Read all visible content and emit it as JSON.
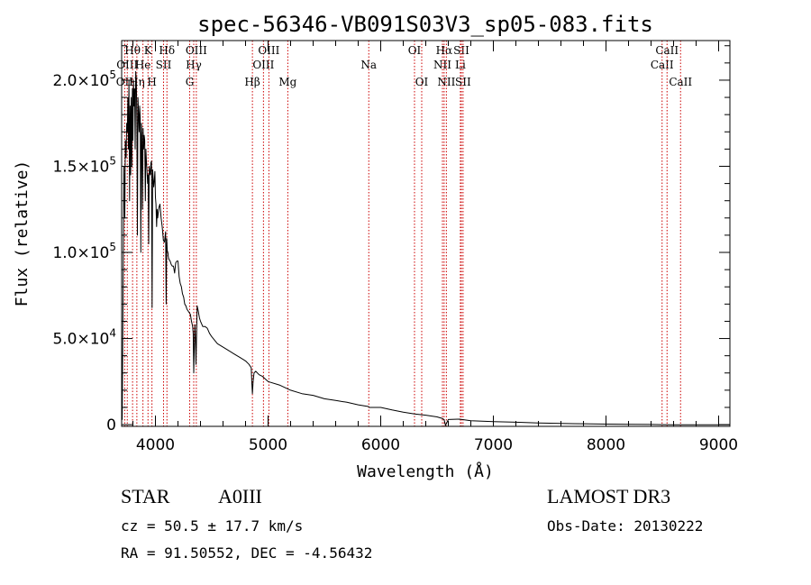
{
  "chart_data": {
    "type": "line",
    "title": "spec-56346-VB091S03V3_sp05-083.fits",
    "xlabel": "Wavelength (Å)",
    "ylabel": "Flux (relative)",
    "xlim": [
      3700,
      9100
    ],
    "ylim": [
      -1000,
      223000
    ],
    "xticks": [
      4000,
      5000,
      6000,
      7000,
      8000,
      9000
    ],
    "xtick_labels": [
      "4000",
      "5000",
      "6000",
      "7000",
      "8000",
      "9000"
    ],
    "yticks": [
      0,
      50000,
      100000,
      150000,
      200000
    ],
    "ytick_labels": [
      {
        "mant": "0",
        "exp": ""
      },
      {
        "mant": "5.0×10",
        "exp": "4"
      },
      {
        "mant": "1.0×10",
        "exp": "5"
      },
      {
        "mant": "1.5×10",
        "exp": "5"
      },
      {
        "mant": "2.0×10",
        "exp": "5"
      }
    ],
    "series": [
      {
        "name": "spectrum",
        "x": [
          3700,
          3705,
          3712,
          3720,
          3728,
          3733,
          3740,
          3745,
          3750,
          3755,
          3760,
          3765,
          3770,
          3775,
          3780,
          3785,
          3790,
          3795,
          3800,
          3805,
          3810,
          3815,
          3820,
          3825,
          3830,
          3835,
          3840,
          3845,
          3850,
          3855,
          3860,
          3865,
          3870,
          3875,
          3880,
          3885,
          3890,
          3895,
          3900,
          3905,
          3910,
          3915,
          3920,
          3925,
          3930,
          3935,
          3940,
          3945,
          3950,
          3955,
          3960,
          3965,
          3970,
          3975,
          3980,
          3985,
          3990,
          3995,
          4000,
          4005,
          4010,
          4015,
          4020,
          4030,
          4040,
          4050,
          4060,
          4070,
          4080,
          4090,
          4095,
          4100,
          4105,
          4110,
          4115,
          4120,
          4130,
          4140,
          4150,
          4160,
          4170,
          4180,
          4190,
          4200,
          4210,
          4220,
          4230,
          4240,
          4250,
          4260,
          4270,
          4280,
          4290,
          4300,
          4310,
          4320,
          4330,
          4335,
          4340,
          4345,
          4350,
          4355,
          4360,
          4370,
          4380,
          4390,
          4400,
          4420,
          4440,
          4460,
          4480,
          4500,
          4550,
          4600,
          4650,
          4700,
          4750,
          4800,
          4830,
          4850,
          4855,
          4861,
          4867,
          4875,
          4890,
          4920,
          4950,
          5000,
          5100,
          5200,
          5300,
          5400,
          5500,
          5600,
          5700,
          5800,
          5890,
          5900,
          6000,
          6100,
          6200,
          6300,
          6400,
          6500,
          6550,
          6563,
          6575,
          6600,
          6700,
          6800,
          6900,
          7000,
          7200,
          7400,
          7600,
          7800,
          8000,
          8200,
          8400,
          8500,
          8600,
          8800,
          9000,
          9100
        ],
        "values": [
          45000,
          3000,
          70000,
          150000,
          120000,
          165000,
          155000,
          175000,
          170000,
          190000,
          160000,
          200000,
          130000,
          185000,
          145000,
          190000,
          150000,
          195000,
          165000,
          200000,
          185000,
          195000,
          160000,
          205000,
          200000,
          175000,
          110000,
          190000,
          180000,
          170000,
          185000,
          178000,
          100000,
          175000,
          168000,
          125000,
          172000,
          160000,
          168000,
          165000,
          130000,
          160000,
          153000,
          148000,
          140000,
          145000,
          105000,
          150000,
          146000,
          145000,
          152000,
          153000,
          68000,
          148000,
          143000,
          138000,
          142000,
          147000,
          132000,
          128000,
          115000,
          125000,
          120000,
          126000,
          128000,
          120000,
          115000,
          107000,
          106000,
          112000,
          70000,
          108000,
          101000,
          100000,
          97000,
          96000,
          95000,
          93000,
          92000,
          92000,
          88000,
          94000,
          95000,
          95000,
          86000,
          82000,
          80000,
          76000,
          74000,
          70000,
          69000,
          67000,
          66000,
          65000,
          64000,
          60000,
          57000,
          53000,
          30000,
          45000,
          58000,
          50000,
          35000,
          69000,
          66000,
          62000,
          60000,
          57000,
          57000,
          56000,
          53000,
          51000,
          47000,
          45000,
          43000,
          41000,
          39000,
          37000,
          35000,
          33000,
          25000,
          18000,
          25000,
          30000,
          31000,
          29000,
          28000,
          25000,
          23000,
          20000,
          18000,
          17000,
          15000,
          14000,
          13000,
          11500,
          10500,
          10000,
          10000,
          8500,
          7200,
          6200,
          5500,
          4500,
          3500,
          2800,
          -500,
          3000,
          3200,
          2300,
          2000,
          1700,
          1400,
          1000,
          700,
          500,
          300,
          200,
          100,
          20,
          -50,
          -50,
          -50,
          -50
        ]
      }
    ],
    "line_markers": [
      {
        "wave": 3727,
        "labels": [
          {
            "text": "OII",
            "row": 3
          }
        ]
      },
      {
        "wave": 3750,
        "labels": [
          {
            "text": "OIII",
            "row": 2
          }
        ]
      },
      {
        "wave": 3797,
        "labels": [
          {
            "text": "Hθ",
            "row": 1
          }
        ]
      },
      {
        "wave": 3835,
        "labels": [
          {
            "text": "Hη",
            "row": 3
          }
        ]
      },
      {
        "wave": 3889,
        "labels": [
          {
            "text": "He",
            "row": 2
          }
        ]
      },
      {
        "wave": 3934,
        "labels": [
          {
            "text": "K",
            "row": 1
          }
        ]
      },
      {
        "wave": 3969,
        "labels": [
          {
            "text": "H",
            "row": 3
          }
        ]
      },
      {
        "wave": 4072,
        "labels": [
          {
            "text": "SII",
            "row": 2
          }
        ]
      },
      {
        "wave": 4102,
        "labels": [
          {
            "text": "Hδ",
            "row": 1
          }
        ]
      },
      {
        "wave": 4304,
        "labels": [
          {
            "text": "G",
            "row": 3
          }
        ]
      },
      {
        "wave": 4340,
        "labels": [
          {
            "text": "Hγ",
            "row": 2
          }
        ]
      },
      {
        "wave": 4363,
        "labels": [
          {
            "text": "OIII",
            "row": 1
          }
        ]
      },
      {
        "wave": 4861,
        "labels": [
          {
            "text": "Hβ",
            "row": 3
          }
        ]
      },
      {
        "wave": 4959,
        "labels": [
          {
            "text": "OIII",
            "row": 2
          }
        ]
      },
      {
        "wave": 5007,
        "labels": [
          {
            "text": "OIII",
            "row": 1
          }
        ]
      },
      {
        "wave": 5175,
        "labels": [
          {
            "text": "Mg",
            "row": 3
          }
        ]
      },
      {
        "wave": 5894,
        "labels": [
          {
            "text": "Na",
            "row": 2
          }
        ]
      },
      {
        "wave": 6300,
        "labels": [
          {
            "text": "OI",
            "row": 1
          }
        ]
      },
      {
        "wave": 6364,
        "labels": [
          {
            "text": "OI",
            "row": 3
          }
        ]
      },
      {
        "wave": 6548,
        "labels": [
          {
            "text": "NII",
            "row": 2
          }
        ]
      },
      {
        "wave": 6563,
        "labels": [
          {
            "text": "Hα",
            "row": 1
          }
        ]
      },
      {
        "wave": 6583,
        "labels": [
          {
            "text": "NII",
            "row": 3
          }
        ]
      },
      {
        "wave": 6707,
        "labels": [
          {
            "text": "Li",
            "row": 2
          }
        ]
      },
      {
        "wave": 6716,
        "labels": [
          {
            "text": "SII",
            "row": 1
          }
        ]
      },
      {
        "wave": 6731,
        "labels": [
          {
            "text": "SII",
            "row": 3
          }
        ]
      },
      {
        "wave": 8498,
        "labels": [
          {
            "text": "CaII",
            "row": 2
          }
        ]
      },
      {
        "wave": 8542,
        "labels": [
          {
            "text": "CaII",
            "row": 1
          }
        ]
      },
      {
        "wave": 8662,
        "labels": [
          {
            "text": "CaII",
            "row": 3
          }
        ]
      }
    ]
  },
  "info": {
    "class": "STAR",
    "subclass": "A0III",
    "survey": "LAMOST DR3",
    "cz": "cz = 50.5 ± 17.7 km/s",
    "obs_date": "Obs-Date: 20130222",
    "radec": "RA =  91.50552, DEC =  -4.56432"
  },
  "colors": {
    "spectrum": "#000000",
    "marker": "#cc0000",
    "axis": "#000000"
  }
}
